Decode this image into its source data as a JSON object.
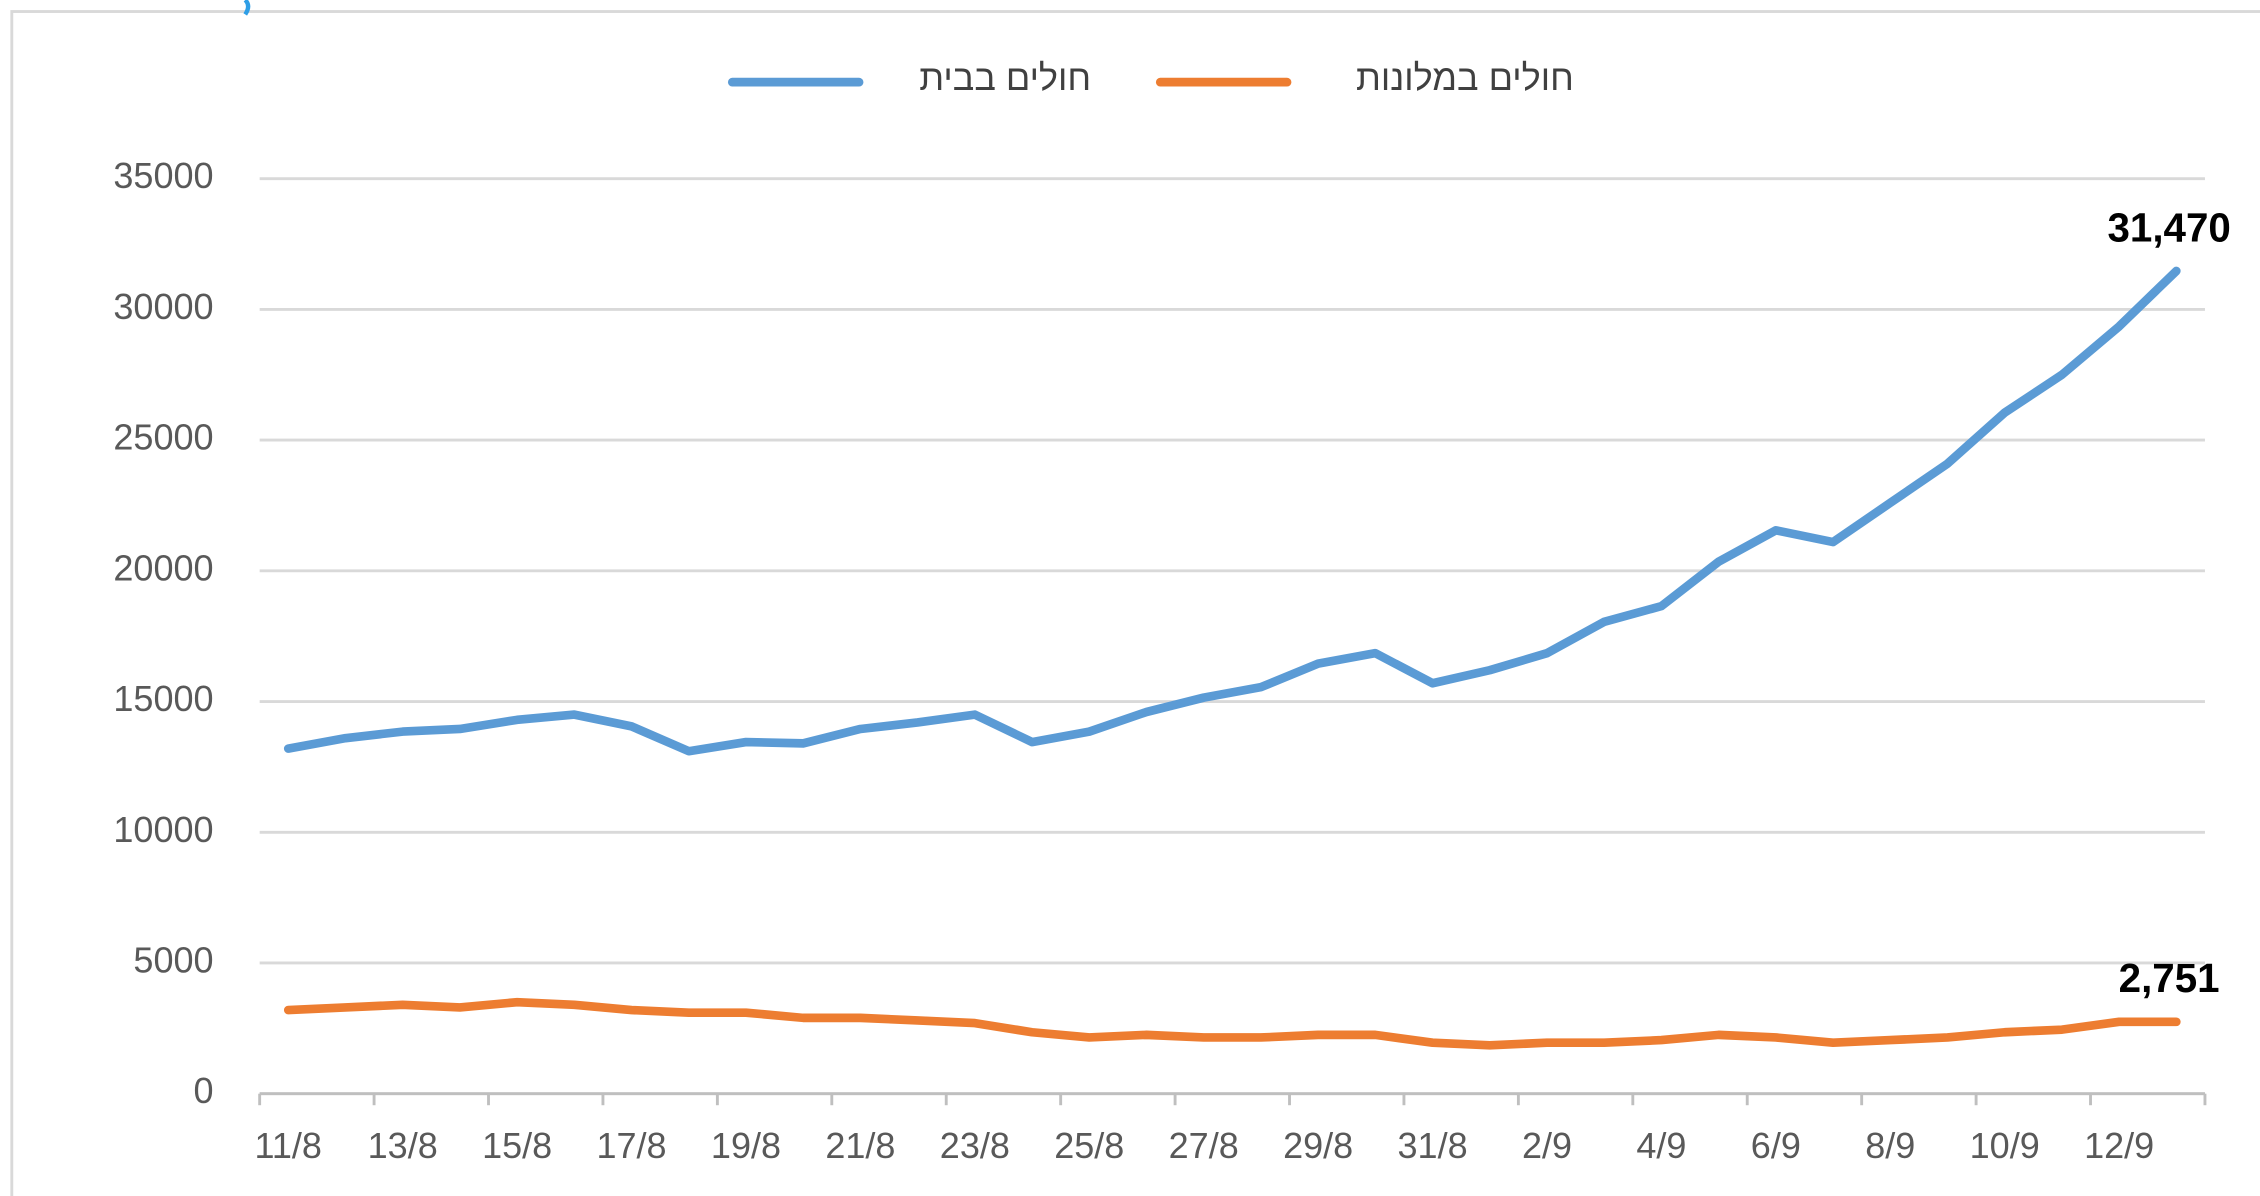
{
  "chart_data": {
    "type": "line",
    "categories": [
      "11/8",
      null,
      "13/8",
      null,
      "15/8",
      null,
      "17/8",
      null,
      "19/8",
      null,
      "21/8",
      null,
      "23/8",
      null,
      "25/8",
      null,
      "27/8",
      null,
      "29/8",
      null,
      "31/8",
      null,
      "2/9",
      null,
      "4/9",
      null,
      "6/9",
      null,
      "8/9",
      null,
      "10/9",
      null,
      "12/9",
      null
    ],
    "series": [
      {
        "name": "חולים בבית",
        "color": "#5b9bd5",
        "values": [
          13200,
          13600,
          13850,
          13950,
          14300,
          14500,
          14050,
          13100,
          13450,
          13400,
          13950,
          14200,
          14500,
          13450,
          13850,
          14600,
          15150,
          15550,
          16450,
          16850,
          15700,
          16200,
          16850,
          18050,
          18650,
          20350,
          21550,
          21100,
          22600,
          24100,
          26050,
          27500,
          29350,
          31470
        ],
        "value_labels": [
          null,
          null,
          null,
          null,
          null,
          null,
          null,
          null,
          null,
          null,
          null,
          null,
          null,
          null,
          null,
          null,
          null,
          null,
          null,
          null,
          null,
          null,
          null,
          null,
          null,
          null,
          null,
          null,
          null,
          null,
          null,
          null,
          null,
          "31,470"
        ]
      },
      {
        "name": "חולים במלונות",
        "color": "#ed7d31",
        "values": [
          3200,
          3300,
          3400,
          3300,
          3500,
          3400,
          3200,
          3100,
          3100,
          2900,
          2900,
          2800,
          2700,
          2350,
          2150,
          2250,
          2150,
          2150,
          2250,
          2250,
          1950,
          1850,
          1950,
          1950,
          2050,
          2250,
          2150,
          1950,
          2050,
          2150,
          2350,
          2450,
          2750,
          2751
        ],
        "value_labels": [
          null,
          null,
          null,
          null,
          null,
          null,
          null,
          null,
          null,
          null,
          null,
          null,
          null,
          null,
          null,
          null,
          null,
          null,
          null,
          null,
          null,
          null,
          null,
          null,
          null,
          null,
          null,
          null,
          null,
          null,
          null,
          null,
          null,
          "2,751"
        ]
      }
    ],
    "ylim": [
      0,
      35000
    ],
    "yticks": [
      0,
      5000,
      10000,
      15000,
      20000,
      25000,
      30000,
      35000
    ],
    "grid": true,
    "legend": "top"
  }
}
